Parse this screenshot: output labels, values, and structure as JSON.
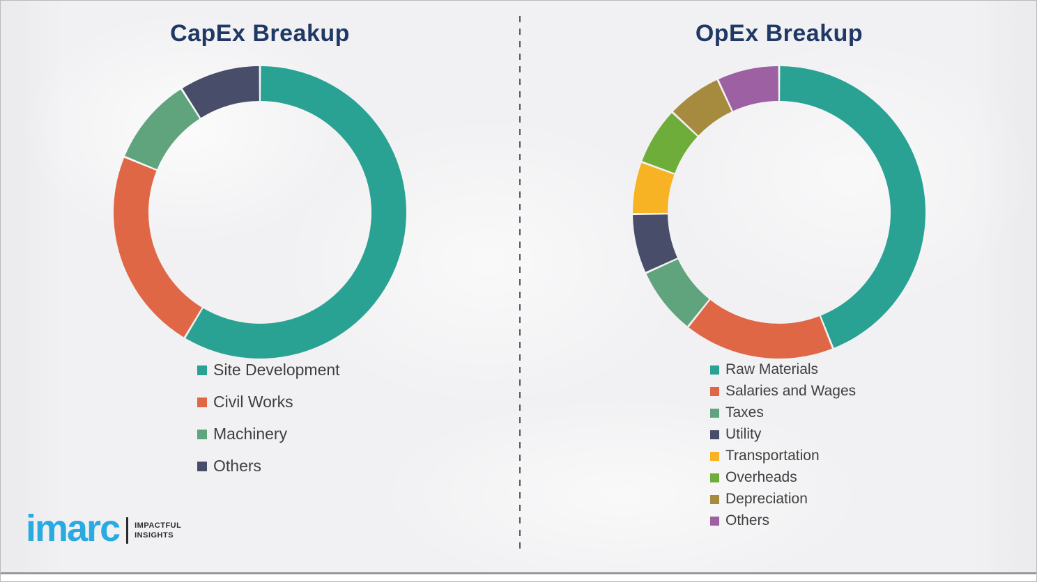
{
  "chart_data": [
    {
      "type": "donut",
      "title": "CapEx Breakup",
      "categories": [
        "Site Development",
        "Civil Works",
        "Machinery",
        "Others"
      ],
      "values": [
        58.6,
        22.6,
        9.8,
        9.0
      ],
      "colors": [
        "#29a293",
        "#e06746",
        "#5fa47d",
        "#484d69"
      ],
      "legend_position": "bottom-left",
      "start_angle_deg": 0,
      "direction": "clockwise"
    },
    {
      "type": "donut",
      "title": "OpEx Breakup",
      "categories": [
        "Raw Materials",
        "Salaries and Wages",
        "Taxes",
        "Utility",
        "Transportation",
        "Overheads",
        "Depreciation",
        "Others"
      ],
      "values": [
        44.0,
        16.7,
        7.5,
        6.6,
        5.8,
        6.4,
        6.1,
        6.9
      ],
      "colors": [
        "#29a293",
        "#e06746",
        "#5fa47d",
        "#484d69",
        "#f8b324",
        "#6fad3a",
        "#a68a3d",
        "#9c60a3"
      ],
      "legend_position": "bottom-left",
      "start_angle_deg": 0,
      "direction": "clockwise"
    }
  ],
  "logo": {
    "brand": "imarc",
    "tagline_line1": "IMPACTFUL",
    "tagline_line2": "INSIGHTS"
  }
}
